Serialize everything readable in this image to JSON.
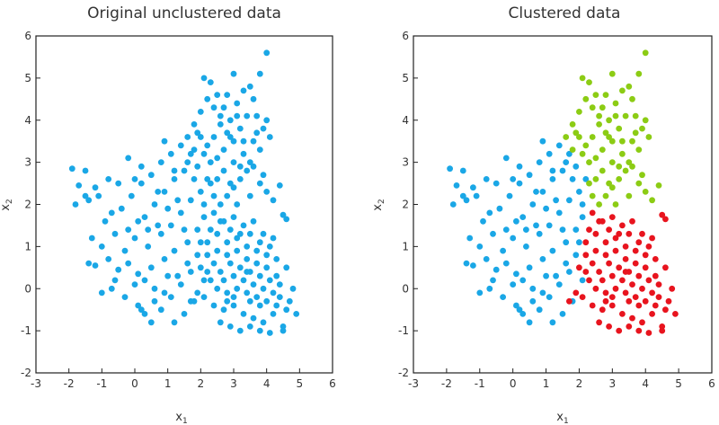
{
  "colors": {
    "blue": "#1aa7e6",
    "green": "#8ccc14",
    "red": "#e8141e",
    "axis": "#222222"
  },
  "chart_data": [
    {
      "type": "scatter",
      "title": "Original unclustered data",
      "xlabel": "x",
      "xlabel_sub": "1",
      "ylabel": "x",
      "ylabel_sub": "2",
      "xlim": [
        -3,
        6
      ],
      "ylim": [
        -2,
        6
      ],
      "xticks": [
        -3,
        -2,
        -1,
        0,
        1,
        2,
        3,
        4,
        5,
        6
      ],
      "yticks": [
        -2,
        -1,
        0,
        1,
        2,
        3,
        4,
        5,
        6
      ],
      "grid": false,
      "points": {
        "clusters": [
          {
            "color": "blue",
            "points": [
              [
                -1.9,
                2.85
              ],
              [
                -1.7,
                2.45
              ],
              [
                -1.5,
                2.8
              ],
              [
                -1.2,
                2.4
              ],
              [
                -1.1,
                2.2
              ],
              [
                -1.4,
                2.1
              ],
              [
                -0.8,
                2.6
              ],
              [
                -0.5,
                2.5
              ],
              [
                -0.2,
                3.1
              ],
              [
                0.2,
                2.9
              ],
              [
                -0.7,
                1.8
              ],
              [
                -0.9,
                1.6
              ],
              [
                -0.4,
                1.9
              ],
              [
                -0.1,
                2.2
              ],
              [
                0.3,
                1.7
              ],
              [
                0.6,
                2.0
              ],
              [
                0.9,
                2.3
              ],
              [
                1.2,
                2.6
              ],
              [
                1.5,
                2.8
              ],
              [
                -1.3,
                1.2
              ],
              [
                -1.0,
                1.0
              ],
              [
                -0.6,
                1.3
              ],
              [
                -0.3,
                0.9
              ],
              [
                0.0,
                1.2
              ],
              [
                0.4,
                1.0
              ],
              [
                0.8,
                1.3
              ],
              [
                1.1,
                1.5
              ],
              [
                1.4,
                1.8
              ],
              [
                1.7,
                2.1
              ],
              [
                2.0,
                2.3
              ],
              [
                -1.4,
                0.6
              ],
              [
                -1.2,
                0.55
              ],
              [
                -0.8,
                0.7
              ],
              [
                -0.5,
                0.45
              ],
              [
                -0.2,
                0.6
              ],
              [
                0.1,
                0.35
              ],
              [
                0.5,
                0.5
              ],
              [
                0.9,
                0.7
              ],
              [
                1.2,
                0.9
              ],
              [
                1.6,
                1.1
              ],
              [
                1.9,
                1.4
              ],
              [
                2.1,
                1.7
              ],
              [
                -1.0,
                -0.1
              ],
              [
                -0.7,
                0.0
              ],
              [
                -0.3,
                -0.2
              ],
              [
                0.1,
                -0.4
              ],
              [
                0.3,
                -0.6
              ],
              [
                0.5,
                -0.8
              ],
              [
                0.8,
                -0.5
              ],
              [
                1.1,
                -0.2
              ],
              [
                1.4,
                0.1
              ],
              [
                1.7,
                0.4
              ],
              [
                0.0,
                0.1
              ],
              [
                0.3,
                0.2
              ],
              [
                0.6,
                0.0
              ],
              [
                0.9,
                -0.1
              ],
              [
                1.3,
                0.3
              ],
              [
                1.6,
                0.6
              ],
              [
                1.9,
                0.8
              ],
              [
                2.0,
                1.1
              ],
              [
                0.2,
                2.5
              ],
              [
                0.5,
                2.7
              ],
              [
                0.8,
                3.0
              ],
              [
                1.1,
                3.2
              ],
              [
                1.4,
                3.4
              ],
              [
                1.6,
                3.0
              ],
              [
                1.3,
                2.1
              ],
              [
                1.0,
                1.9
              ],
              [
                0.7,
                1.5
              ],
              [
                0.4,
                1.4
              ],
              [
                0.1,
                1.6
              ],
              [
                -0.2,
                1.4
              ],
              [
                1.8,
                2.6
              ],
              [
                2.1,
                2.0
              ],
              [
                2.1,
                0.2
              ],
              [
                1.8,
                -0.3
              ],
              [
                1.5,
                -0.6
              ],
              [
                1.2,
                -0.8
              ],
              [
                0.6,
                -0.3
              ],
              [
                -0.6,
                0.2
              ],
              [
                -1.5,
                2.2
              ],
              [
                -1.8,
                2.0
              ],
              [
                0.0,
                2.6
              ],
              [
                0.7,
                2.3
              ],
              [
                1.5,
                1.4
              ],
              [
                1.0,
                0.3
              ],
              [
                0.2,
                -0.5
              ],
              [
                2.2,
                2.6
              ],
              [
                1.9,
                2.9
              ],
              [
                1.7,
                3.2
              ],
              [
                1.2,
                2.8
              ],
              [
                0.9,
                3.5
              ]
            ]
          },
          {
            "color": "green",
            "points": [
              [
                1.6,
                3.6
              ],
              [
                1.8,
                3.9
              ],
              [
                2.0,
                4.2
              ],
              [
                2.2,
                4.5
              ],
              [
                2.1,
                5.0
              ],
              [
                2.3,
                4.9
              ],
              [
                2.5,
                4.6
              ],
              [
                2.7,
                4.3
              ],
              [
                2.9,
                4.0
              ],
              [
                3.1,
                4.4
              ],
              [
                3.3,
                4.7
              ],
              [
                3.5,
                4.8
              ],
              [
                3.8,
                5.1
              ],
              [
                4.0,
                5.6
              ],
              [
                3.6,
                4.5
              ],
              [
                3.4,
                4.1
              ],
              [
                3.2,
                3.8
              ],
              [
                3.0,
                3.5
              ],
              [
                2.8,
                3.7
              ],
              [
                2.6,
                3.9
              ],
              [
                2.4,
                3.6
              ],
              [
                2.2,
                3.4
              ],
              [
                2.0,
                3.6
              ],
              [
                1.8,
                3.3
              ],
              [
                3.7,
                4.1
              ],
              [
                3.9,
                3.8
              ],
              [
                4.1,
                3.6
              ],
              [
                3.8,
                3.3
              ],
              [
                3.6,
                3.5
              ],
              [
                3.3,
                3.2
              ],
              [
                3.0,
                3.0
              ],
              [
                2.7,
                2.8
              ],
              [
                2.5,
                2.6
              ],
              [
                2.3,
                2.5
              ],
              [
                2.4,
                2.2
              ],
              [
                2.6,
                2.0
              ],
              [
                2.8,
                2.2
              ],
              [
                3.0,
                2.4
              ],
              [
                3.2,
                2.6
              ],
              [
                3.4,
                2.8
              ],
              [
                3.6,
                2.9
              ],
              [
                3.8,
                2.5
              ],
              [
                4.0,
                2.3
              ],
              [
                4.2,
                2.1
              ],
              [
                4.4,
                2.45
              ],
              [
                3.9,
                2.7
              ],
              [
                3.5,
                2.2
              ],
              [
                3.1,
                2.0
              ],
              [
                2.9,
                2.5
              ],
              [
                2.5,
                3.1
              ],
              [
                2.3,
                3.0
              ],
              [
                2.7,
                3.3
              ],
              [
                2.9,
                3.6
              ],
              [
                3.1,
                4.1
              ],
              [
                2.6,
                4.1
              ],
              [
                2.4,
                4.3
              ],
              [
                2.8,
                4.6
              ],
              [
                3.0,
                5.1
              ],
              [
                1.9,
                3.7
              ],
              [
                2.1,
                3.2
              ],
              [
                3.3,
                3.5
              ],
              [
                3.7,
                3.7
              ],
              [
                4.0,
                4.0
              ],
              [
                3.5,
                3.0
              ],
              [
                3.2,
                2.9
              ]
            ]
          },
          {
            "color": "red",
            "points": [
              [
                2.4,
                1.8
              ],
              [
                2.7,
                1.6
              ],
              [
                3.0,
                1.7
              ],
              [
                3.3,
                1.5
              ],
              [
                3.6,
                1.6
              ],
              [
                3.9,
                1.3
              ],
              [
                4.2,
                1.2
              ],
              [
                4.5,
                1.75
              ],
              [
                4.6,
                1.65
              ],
              [
                2.5,
                1.3
              ],
              [
                2.8,
                1.1
              ],
              [
                3.1,
                1.2
              ],
              [
                3.4,
                1.0
              ],
              [
                3.7,
                0.9
              ],
              [
                4.0,
                0.8
              ],
              [
                4.3,
                0.7
              ],
              [
                4.6,
                0.5
              ],
              [
                2.2,
                0.8
              ],
              [
                2.4,
                0.6
              ],
              [
                2.6,
                0.4
              ],
              [
                2.9,
                0.6
              ],
              [
                3.2,
                0.5
              ],
              [
                3.5,
                0.4
              ],
              [
                3.8,
                0.3
              ],
              [
                4.1,
                0.2
              ],
              [
                4.4,
                0.1
              ],
              [
                4.8,
                0.0
              ],
              [
                2.3,
                0.2
              ],
              [
                2.5,
                0.0
              ],
              [
                2.8,
                -0.1
              ],
              [
                3.1,
                0.0
              ],
              [
                3.4,
                -0.1
              ],
              [
                3.7,
                -0.2
              ],
              [
                4.0,
                -0.3
              ],
              [
                4.3,
                -0.4
              ],
              [
                4.6,
                -0.5
              ],
              [
                4.9,
                -0.6
              ],
              [
                2.1,
                -0.2
              ],
              [
                2.4,
                -0.4
              ],
              [
                2.7,
                -0.5
              ],
              [
                3.0,
                -0.4
              ],
              [
                3.3,
                -0.6
              ],
              [
                3.6,
                -0.7
              ],
              [
                3.9,
                -0.8
              ],
              [
                4.2,
                -0.6
              ],
              [
                4.5,
                -0.9
              ],
              [
                2.6,
                -0.8
              ],
              [
                2.9,
                -0.9
              ],
              [
                3.2,
                -1.0
              ],
              [
                3.5,
                -0.9
              ],
              [
                3.8,
                -1.0
              ],
              [
                4.1,
                -1.05
              ],
              [
                4.5,
                -1.0
              ],
              [
                1.7,
                -0.3
              ],
              [
                1.9,
                -0.1
              ],
              [
                2.2,
                0.4
              ],
              [
                2.5,
                0.9
              ],
              [
                2.8,
                0.8
              ],
              [
                3.1,
                0.9
              ],
              [
                3.4,
                0.7
              ],
              [
                3.7,
                0.6
              ],
              [
                4.0,
                0.5
              ],
              [
                4.3,
                0.3
              ],
              [
                2.0,
                0.5
              ],
              [
                2.7,
                0.2
              ],
              [
                3.0,
                0.3
              ],
              [
                3.3,
                0.2
              ],
              [
                3.6,
                0.1
              ],
              [
                3.9,
                0.0
              ],
              [
                4.2,
                -0.1
              ],
              [
                3.5,
                1.3
              ],
              [
                3.8,
                1.1
              ],
              [
                4.1,
                1.0
              ],
              [
                2.9,
                1.4
              ],
              [
                3.2,
                1.3
              ],
              [
                2.6,
                1.6
              ],
              [
                2.3,
                1.4
              ],
              [
                2.2,
                1.1
              ],
              [
                4.4,
                -0.2
              ],
              [
                4.7,
                -0.3
              ],
              [
                3.0,
                -0.2
              ],
              [
                3.4,
                0.4
              ],
              [
                3.8,
                -0.4
              ],
              [
                2.8,
                -0.3
              ],
              [
                3.5,
                -0.3
              ]
            ]
          }
        ]
      }
    },
    {
      "type": "scatter",
      "title": "Clustered data",
      "xlabel": "x",
      "xlabel_sub": "1",
      "ylabel": "x",
      "ylabel_sub": "2",
      "xlim": [
        -3,
        6
      ],
      "ylim": [
        -2,
        6
      ],
      "xticks": [
        -3,
        -2,
        -1,
        0,
        1,
        2,
        3,
        4,
        5,
        6
      ],
      "yticks": [
        -2,
        -1,
        0,
        1,
        2,
        3,
        4,
        5,
        6
      ],
      "grid": false
    }
  ]
}
